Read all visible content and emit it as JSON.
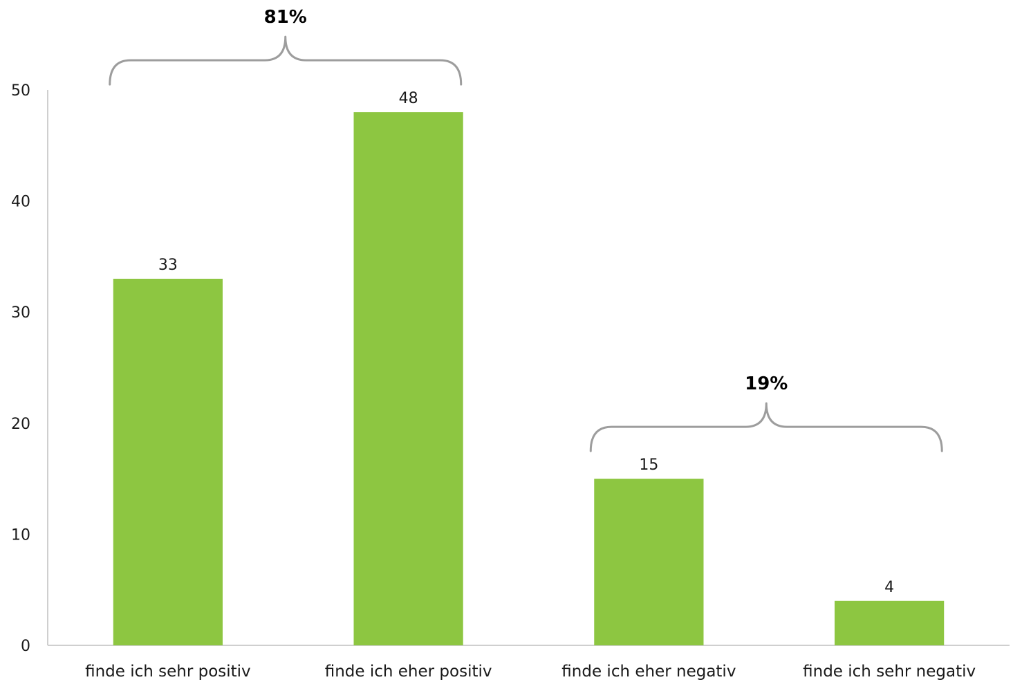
{
  "chart_data": {
    "type": "bar",
    "categories": [
      "finde ich sehr positiv",
      "finde ich eher positiv",
      "finde ich eher negativ",
      "finde ich sehr negativ"
    ],
    "values": [
      33,
      48,
      15,
      4
    ],
    "ylim": [
      0,
      50
    ],
    "yticks": [
      "0",
      "10",
      "20",
      "30",
      "40",
      "50"
    ],
    "grid": false,
    "legend": "none",
    "bar_color": "#8dc641",
    "brace_color": "#9d9d9d",
    "annotations": [
      {
        "label": "81%",
        "from_category": 0,
        "to_category": 1
      },
      {
        "label": "19%",
        "from_category": 2,
        "to_category": 3
      }
    ]
  }
}
